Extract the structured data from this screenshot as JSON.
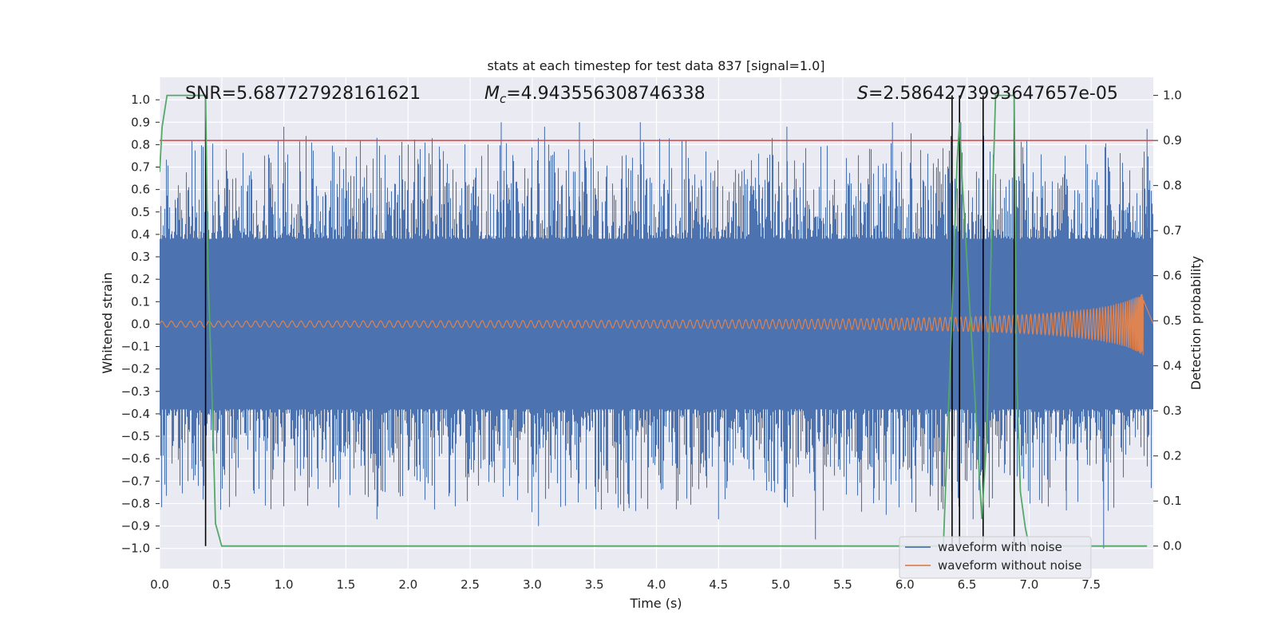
{
  "chart_data": {
    "type": "line",
    "title": "stats at each timestep for test data 837 [signal=1.0]",
    "xlabel": "Time (s)",
    "ylabel_left": "Whitened strain",
    "ylabel_right": "Detection probability",
    "xlim": [
      0.0,
      8.0
    ],
    "ylim_left": [
      -1.09,
      1.1
    ],
    "ylim_right": [
      -0.05,
      1.04
    ],
    "grid": true,
    "legend_position": "bottom-right",
    "x_ticks": [
      "0.0",
      "0.5",
      "1.0",
      "1.5",
      "2.0",
      "2.5",
      "3.0",
      "3.5",
      "4.0",
      "4.5",
      "5.0",
      "5.5",
      "6.0",
      "6.5",
      "7.0",
      "7.5"
    ],
    "x_tick_values": [
      0.0,
      0.5,
      1.0,
      1.5,
      2.0,
      2.5,
      3.0,
      3.5,
      4.0,
      4.5,
      5.0,
      5.5,
      6.0,
      6.5,
      7.0,
      7.5
    ],
    "y_left_ticks": [
      "1.0",
      "0.9",
      "0.8",
      "0.7",
      "0.6",
      "0.5",
      "0.4",
      "0.3",
      "0.2",
      "0.1",
      "0.0",
      "−0.1",
      "−0.2",
      "−0.3",
      "−0.4",
      "−0.5",
      "−0.6",
      "−0.7",
      "−0.8",
      "−0.9",
      "−1.0"
    ],
    "y_left_tick_values": [
      1.0,
      0.9,
      0.8,
      0.7,
      0.6,
      0.5,
      0.4,
      0.3,
      0.2,
      0.1,
      0.0,
      -0.1,
      -0.2,
      -0.3,
      -0.4,
      -0.5,
      -0.6,
      -0.7,
      -0.8,
      -0.9,
      -1.0
    ],
    "y_right_ticks": [
      "1.0",
      "0.9",
      "0.8",
      "0.7",
      "0.6",
      "0.5",
      "0.4",
      "0.3",
      "0.2",
      "0.1",
      "0.0"
    ],
    "y_right_tick_values": [
      1.0,
      0.9,
      0.8,
      0.7,
      0.6,
      0.5,
      0.4,
      0.3,
      0.2,
      0.1,
      0.0
    ],
    "annotations": {
      "snr": "SNR=5.687727928161621",
      "mc_symbol": "M",
      "mc_sub": "c",
      "mc_value": "=4.943556308746338",
      "s_symbol": "S",
      "s_value": "=2.5864273993647657e-05"
    },
    "threshold": {
      "name": "detection threshold",
      "value": 0.9,
      "axis": "right"
    },
    "vertical_markers": [
      0.37,
      6.38,
      6.44,
      6.63,
      6.88
    ],
    "series": [
      {
        "name": "waveform with noise",
        "axis": "left",
        "kind": "noise",
        "core_amplitude": 0.38,
        "peak_range": [
          -1.0,
          0.9
        ],
        "spikes_up": [
          [
            0.35,
            0.79
          ],
          [
            1.0,
            0.88
          ],
          [
            1.75,
            0.83
          ],
          [
            2.75,
            0.9
          ],
          [
            3.1,
            0.88
          ],
          [
            3.38,
            0.9
          ],
          [
            3.87,
            0.9
          ],
          [
            5.05,
            0.88
          ],
          [
            5.9,
            0.9
          ],
          [
            6.05,
            0.85
          ],
          [
            6.45,
            0.9
          ],
          [
            7.95,
            0.87
          ]
        ],
        "spikes_down": [
          [
            1.75,
            -0.87
          ],
          [
            3.05,
            -0.9
          ],
          [
            3.78,
            -0.82
          ],
          [
            4.5,
            -0.87
          ],
          [
            5.28,
            -0.96
          ],
          [
            5.85,
            -0.85
          ],
          [
            6.55,
            -0.87
          ],
          [
            7.3,
            -0.83
          ],
          [
            7.6,
            -1.0
          ]
        ]
      },
      {
        "name": "waveform without noise",
        "axis": "left",
        "kind": "chirp",
        "amplitude_start": 0.013,
        "amplitude_end": 0.14,
        "merger_time": 7.92
      },
      {
        "name": "detection probability",
        "axis": "right",
        "x": [
          0.0,
          0.02,
          0.06,
          0.12,
          0.2,
          0.3,
          0.37,
          0.39,
          0.42,
          0.44,
          0.45,
          0.5,
          0.6,
          1.0,
          2.0,
          3.0,
          4.0,
          5.0,
          6.0,
          6.2,
          6.31,
          6.38,
          6.42,
          6.44,
          6.46,
          6.55,
          6.62,
          6.66,
          6.7,
          6.73,
          6.8,
          6.88,
          6.9,
          6.93,
          6.97,
          7.0,
          7.05,
          7.2,
          7.5,
          7.95
        ],
        "y": [
          0.83,
          0.93,
          1.0,
          1.0,
          1.0,
          1.0,
          1.0,
          0.6,
          0.35,
          0.15,
          0.05,
          0.0,
          0.0,
          0.0,
          0.0,
          0.0,
          0.0,
          0.0,
          0.0,
          0.0,
          0.0,
          0.52,
          0.85,
          0.94,
          0.82,
          0.4,
          0.06,
          0.25,
          0.72,
          1.0,
          1.0,
          1.0,
          0.38,
          0.12,
          0.04,
          0.0,
          0.0,
          0.0,
          0.0,
          0.0
        ]
      }
    ]
  }
}
